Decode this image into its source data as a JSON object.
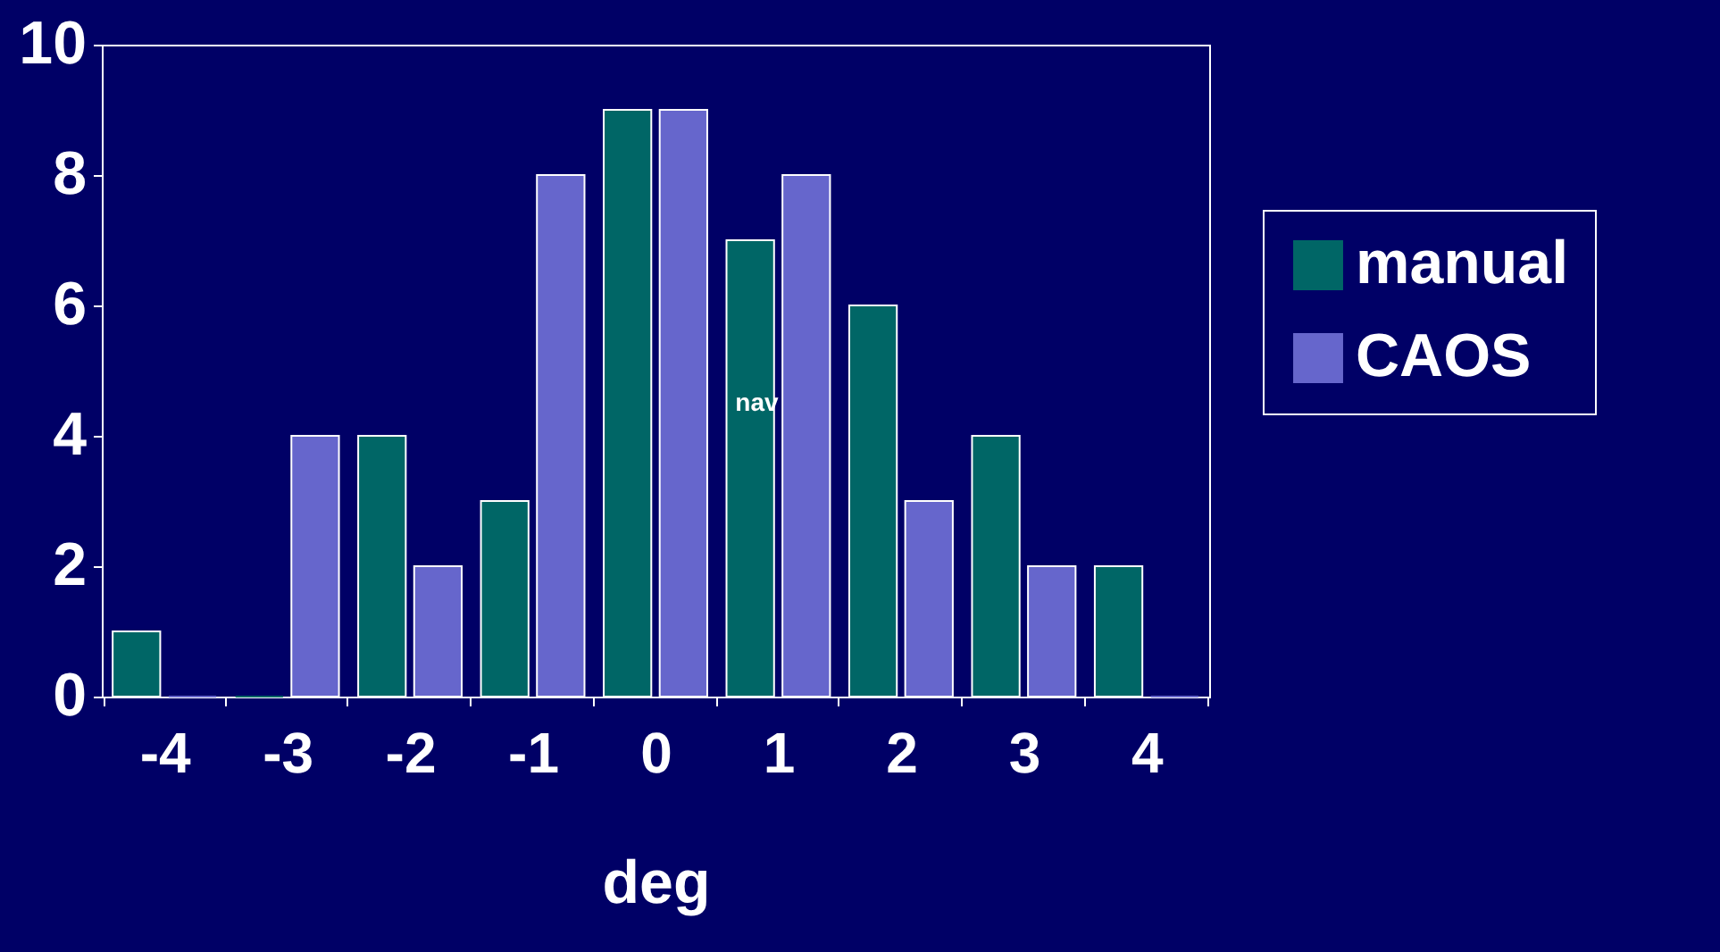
{
  "chart_data": {
    "type": "bar",
    "xlabel": "deg",
    "categories": [
      "-4",
      "-3",
      "-2",
      "-1",
      "0",
      "1",
      "2",
      "3",
      "4"
    ],
    "series": [
      {
        "name": "manual",
        "color": "#006666",
        "values": [
          1,
          0,
          4,
          3,
          9,
          7,
          6,
          4,
          2
        ]
      },
      {
        "name": "CAOS",
        "color": "#6666cc",
        "values": [
          0,
          4,
          2,
          8,
          9,
          8,
          3,
          2,
          0
        ]
      }
    ],
    "ylim": [
      0,
      10
    ],
    "yticks": [
      0,
      2,
      4,
      6,
      8,
      10
    ],
    "grid": false,
    "legend": "right",
    "annotations": [
      {
        "text": "nav",
        "x": "1",
        "y": 4.5
      }
    ]
  }
}
